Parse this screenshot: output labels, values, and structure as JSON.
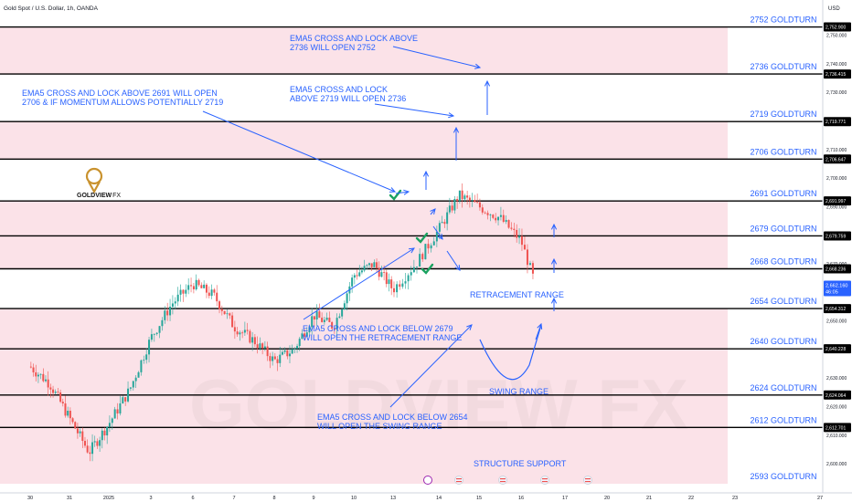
{
  "header": {
    "symbol_title": "Gold Spot / U.S. Dollar, 1h, OANDA",
    "currency": "USD"
  },
  "brand": {
    "name": "GOLDVIEW",
    "suffix": "FX",
    "watermark": "GOLDVIEW FX"
  },
  "colors": {
    "bull": "#26a69a",
    "bear": "#ef5350",
    "zone_fill": "#fbe2e8",
    "annotation": "#2962ff",
    "level_line": "#000000",
    "check": "#1aa260",
    "logo": "#c9922e"
  },
  "chart_data": {
    "type": "candlestick",
    "symbol": "Gold Spot / U.S. Dollar",
    "timeframe": "1h",
    "source": "OANDA",
    "x_ticks": [
      "30",
      "31",
      "2025",
      "3",
      "6",
      "7",
      "8",
      "9",
      "10",
      "13",
      "14",
      "15",
      "16",
      "17",
      "20",
      "21",
      "22",
      "23",
      "27"
    ],
    "y_ticks": [
      "2,750.000",
      "2,740.000",
      "2,730.000",
      "2,720.000",
      "2,710.000",
      "2,700.000",
      "2,690.000",
      "2,680.000",
      "2,670.000",
      "2,660.000",
      "2,650.000",
      "2,640.000",
      "2,630.000",
      "2,620.000",
      "2,610.000",
      "2,600.000"
    ],
    "ylim": [
      2593,
      2756
    ],
    "price_path": [
      [
        0,
        2634
      ],
      [
        0.5,
        2628
      ],
      [
        1,
        2616
      ],
      [
        1.5,
        2604
      ],
      [
        2,
        2614
      ],
      [
        2.5,
        2626
      ],
      [
        3,
        2644
      ],
      [
        3.5,
        2656
      ],
      [
        4,
        2663
      ],
      [
        4.5,
        2659
      ],
      [
        5,
        2648
      ],
      [
        5.5,
        2643
      ],
      [
        6,
        2636
      ],
      [
        6.5,
        2640
      ],
      [
        7,
        2652
      ],
      [
        7.5,
        2648
      ],
      [
        8,
        2666
      ],
      [
        8.5,
        2670
      ],
      [
        9,
        2661
      ],
      [
        9.5,
        2670
      ],
      [
        10,
        2682
      ],
      [
        10.5,
        2694
      ],
      [
        11,
        2690
      ],
      [
        11.5,
        2686
      ],
      [
        12,
        2678
      ],
      [
        12.3,
        2664
      ]
    ],
    "last_price": "2,662.160",
    "countdown": "46:05",
    "levels": [
      {
        "label": "2752 GOLDTURN",
        "price": 2752.9,
        "tag": "2,752.900"
      },
      {
        "label": "2736 GOLDTURN",
        "price": 2736.415,
        "tag": "2,736.415"
      },
      {
        "label": "2719 GOLDTURN",
        "price": 2719.771,
        "tag": "2,719.771"
      },
      {
        "label": "2706 GOLDTURN",
        "price": 2706.647,
        "tag": "2,706.647"
      },
      {
        "label": "2691 GOLDTURN",
        "price": 2691.997,
        "tag": "2,691.997"
      },
      {
        "label": "2679 GOLDTURN",
        "price": 2679.759,
        "tag": "2,679.759"
      },
      {
        "label": "2668 GOLDTURN",
        "price": 2668.236,
        "tag": "2,668.236"
      },
      {
        "label": "2654 GOLDTURN",
        "price": 2654.312,
        "tag": "2,654.312"
      },
      {
        "label": "2640 GOLDTURN",
        "price": 2640.228,
        "tag": "2,640.228"
      },
      {
        "label": "2624 GOLDTURN",
        "price": 2624.064,
        "tag": "2,624.064"
      },
      {
        "label": "2612 GOLDTURN",
        "price": 2612.701,
        "tag": "2,612.701"
      },
      {
        "label": "2593 GOLDTURN",
        "price": 2593,
        "tag": ""
      }
    ],
    "zones": [
      [
        2736.415,
        2752.9
      ],
      [
        2706.647,
        2719.771
      ],
      [
        2668.236,
        2691.997
      ],
      [
        2593,
        2654.312
      ]
    ],
    "annotations": [
      {
        "lines": [
          "EMA5 CROSS AND LOCK ABOVE",
          "2736 WILL OPEN 2752"
        ]
      },
      {
        "lines": [
          "EMA5 CROSS AND LOCK",
          "ABOVE 2719 WILL OPEN 2736"
        ]
      },
      {
        "lines": [
          "EMA5 CROSS AND LOCK ABOVE 2691 WILL OPEN",
          "2706 & IF MOMENTUM ALLOWS POTENTIALLY 2719"
        ]
      },
      {
        "lines": [
          "EMA5 CROSS AND LOCK BELOW 2679",
          "WILL OPEN THE RETRACEMENT RANGE"
        ]
      },
      {
        "lines": [
          "EMA5 CROSS AND LOCK BELOW 2654",
          "WILL OPEN THE SWING RANGE"
        ]
      },
      {
        "lines": [
          "RETRACEMENT RANGE"
        ]
      },
      {
        "lines": [
          "SWING RANGE"
        ]
      },
      {
        "lines": [
          "STRUCTURE SUPPORT"
        ]
      }
    ]
  }
}
